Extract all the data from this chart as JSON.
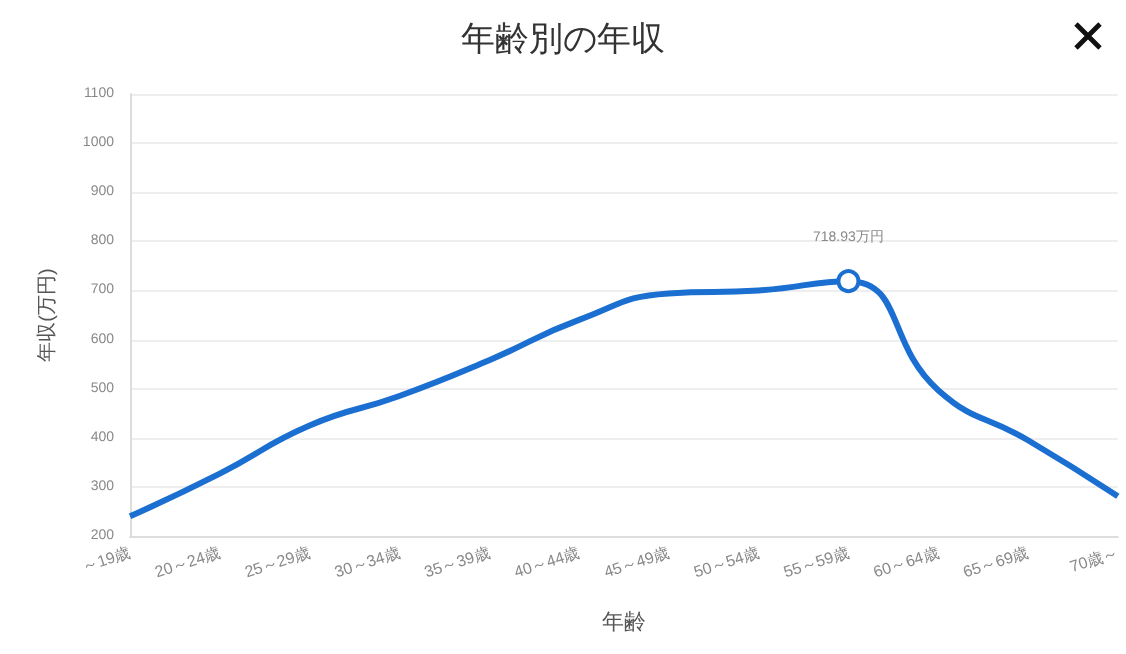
{
  "chart_data": {
    "type": "line",
    "title": "年齢別の年収",
    "xlabel": "年齢",
    "ylabel": "年収(万円)",
    "categories": [
      "～19歳",
      "20～24歳",
      "25～29歳",
      "30～34歳",
      "35～39歳",
      "40～44歳",
      "45～49歳",
      "50～54歳",
      "55～59歳",
      "60～64歳",
      "65～69歳",
      "70歳～"
    ],
    "series": [
      {
        "color": "#1a6fd0",
        "values": [
          240,
          327,
          425,
          485,
          558,
          640,
          694,
          700,
          718.93,
          497,
          395,
          281
        ],
        "value_labels": [
          null,
          null,
          null,
          null,
          null,
          null,
          null,
          null,
          "718.93万円",
          null,
          null,
          null
        ]
      }
    ],
    "ylim": [
      200,
      1100
    ],
    "yticks": [
      200,
      300,
      400,
      500,
      600,
      700,
      800,
      900,
      1000,
      1100
    ],
    "grid": "y",
    "marker": "none",
    "line_style": "solid"
  }
}
